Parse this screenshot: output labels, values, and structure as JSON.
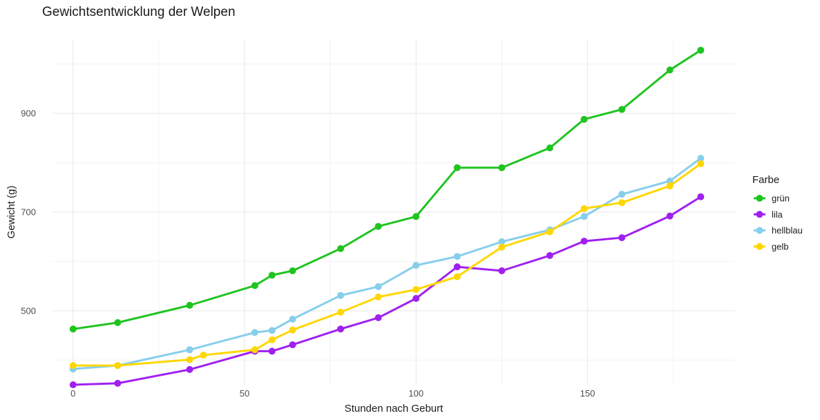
{
  "chart_data": {
    "type": "line",
    "title": "Gewichtsentwicklung der Welpen",
    "xlabel": "Stunden nach Geburt",
    "ylabel": "Gewicht (g)",
    "xlim": [
      -6,
      193
    ],
    "ylim": [
      350,
      1050
    ],
    "x_ticks": [
      0,
      50,
      100,
      150
    ],
    "x_tick_labels": [
      "0",
      "50",
      "100",
      "150"
    ],
    "y_ticks": [
      500,
      700,
      900
    ],
    "y_tick_labels": [
      "500",
      "700",
      "900"
    ],
    "x_minor_grid": [
      25,
      75,
      125,
      175
    ],
    "y_minor_grid": [
      400,
      600,
      800,
      1000
    ],
    "grid": true,
    "legend_title": "Farbe",
    "legend_position": "right",
    "series": [
      {
        "name": "grün",
        "color": "#1fc41f",
        "points": [
          [
            0,
            463
          ],
          [
            13,
            476
          ],
          [
            34,
            511
          ],
          [
            53,
            551
          ],
          [
            58,
            572
          ],
          [
            64,
            581
          ],
          [
            78,
            626
          ],
          [
            89,
            671
          ],
          [
            100,
            691
          ],
          [
            112,
            790
          ],
          [
            125,
            790
          ],
          [
            139,
            830
          ],
          [
            149,
            888
          ],
          [
            160,
            908
          ],
          [
            174,
            988
          ],
          [
            183,
            1028
          ]
        ]
      },
      {
        "name": "lila",
        "color": "#a020f0",
        "points": [
          [
            0,
            350
          ],
          [
            13,
            353
          ],
          [
            34,
            381
          ],
          [
            53,
            418
          ],
          [
            58,
            418
          ],
          [
            64,
            431
          ],
          [
            78,
            463
          ],
          [
            89,
            486
          ],
          [
            100,
            525
          ],
          [
            112,
            589
          ],
          [
            125,
            581
          ],
          [
            139,
            612
          ],
          [
            149,
            641
          ],
          [
            160,
            648
          ],
          [
            174,
            692
          ],
          [
            183,
            731
          ]
        ]
      },
      {
        "name": "hellblau",
        "color": "#87ceeb",
        "points": [
          [
            0,
            382
          ],
          [
            13,
            389
          ],
          [
            34,
            421
          ],
          [
            53,
            456
          ],
          [
            58,
            460
          ],
          [
            64,
            483
          ],
          [
            78,
            531
          ],
          [
            89,
            549
          ],
          [
            100,
            592
          ],
          [
            112,
            610
          ],
          [
            125,
            640
          ],
          [
            139,
            664
          ],
          [
            149,
            691
          ],
          [
            160,
            736
          ],
          [
            174,
            763
          ],
          [
            183,
            809
          ]
        ]
      },
      {
        "name": "gelb",
        "color": "#ffd700",
        "points": [
          [
            0,
            389
          ],
          [
            13,
            389
          ],
          [
            34,
            401
          ],
          [
            38,
            410
          ],
          [
            53,
            421
          ],
          [
            58,
            441
          ],
          [
            64,
            461
          ],
          [
            78,
            497
          ],
          [
            89,
            528
          ],
          [
            100,
            543
          ],
          [
            112,
            569
          ],
          [
            125,
            629
          ],
          [
            139,
            660
          ],
          [
            149,
            707
          ],
          [
            160,
            719
          ],
          [
            174,
            753
          ],
          [
            183,
            798
          ]
        ]
      }
    ]
  }
}
